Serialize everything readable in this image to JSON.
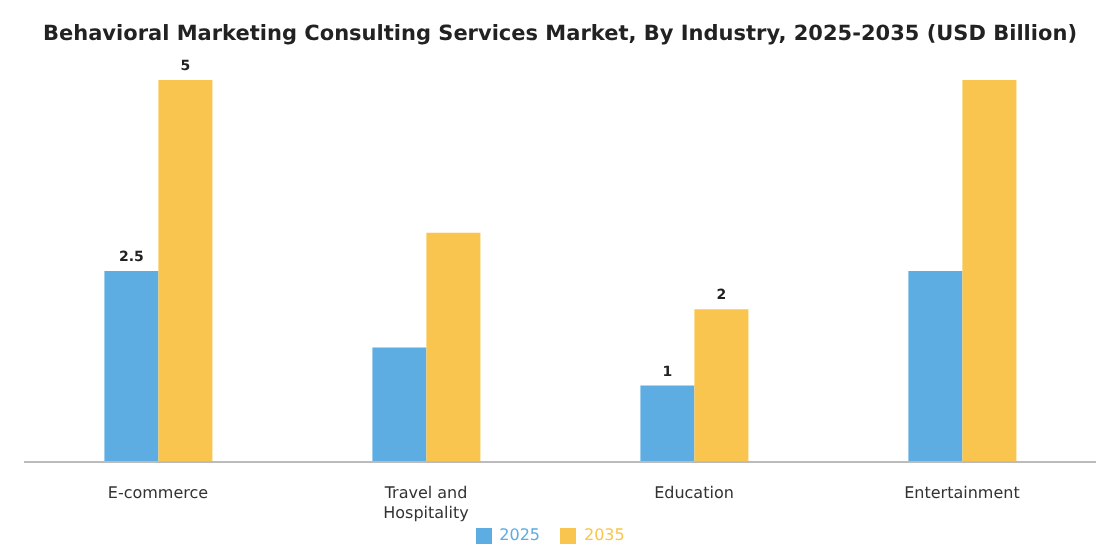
{
  "chart_data": {
    "type": "bar",
    "title": "Behavioral Marketing Consulting Services Market, By Industry, 2025-2035 (USD Billion)",
    "categories": [
      "E-commerce",
      "Travel and Hospitality",
      "Education",
      "Entertainment"
    ],
    "series": [
      {
        "name": "2025",
        "color": "#5dade2",
        "values": [
          2.5,
          1.5,
          1,
          2.5
        ],
        "value_labels": [
          "2.5",
          null,
          "1",
          null
        ]
      },
      {
        "name": "2035",
        "color": "#f9c54e",
        "values": [
          5,
          3,
          2,
          5
        ],
        "value_labels": [
          "5",
          null,
          "2",
          null
        ]
      }
    ],
    "legend": "bottom"
  }
}
